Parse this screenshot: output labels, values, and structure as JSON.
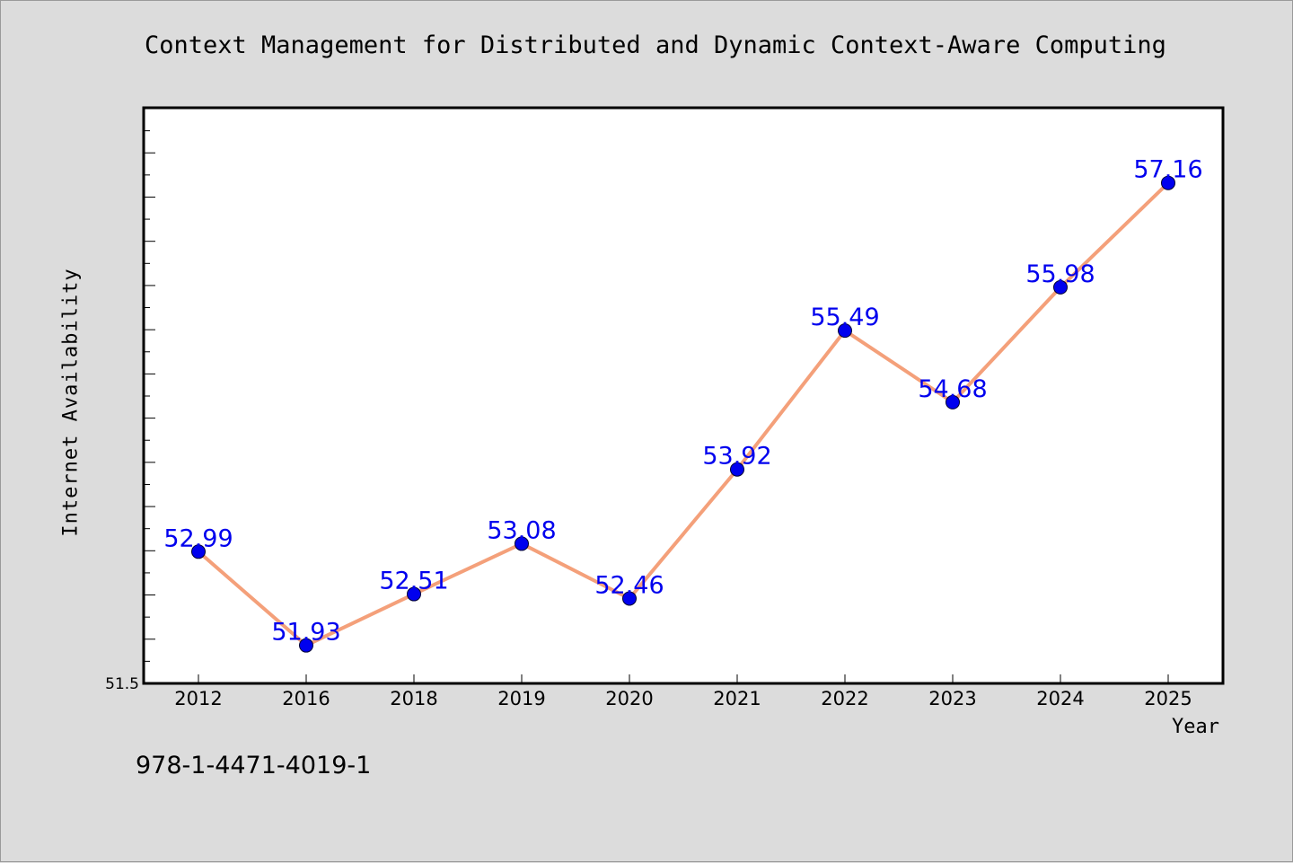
{
  "chart_data": {
    "type": "line",
    "title": "Context Management for Distributed and Dynamic Context-Aware Computing",
    "xlabel": "Year",
    "ylabel": "Internet Availability",
    "categories": [
      "2012",
      "2016",
      "2018",
      "2019",
      "2020",
      "2021",
      "2022",
      "2023",
      "2024",
      "2025"
    ],
    "values": [
      52.99,
      51.93,
      52.51,
      53.08,
      52.46,
      53.92,
      55.49,
      54.68,
      55.98,
      57.16
    ],
    "data_labels": [
      "52.99",
      "51.93",
      "52.51",
      "53.08",
      "52.46",
      "53.92",
      "55.49",
      "54.68",
      "55.98",
      "57.16"
    ],
    "ylim": [
      51.5,
      58.0
    ],
    "y_tick_labels": [
      "51.5"
    ],
    "grid": false,
    "legend": "none",
    "colors": {
      "line": "#f4a07a",
      "marker": "#0000ee",
      "data_label": "#0000ee",
      "background": "#dcdcdc",
      "plot_background": "#ffffff"
    }
  },
  "footer": {
    "isbn": "978-1-4471-4019-1"
  }
}
